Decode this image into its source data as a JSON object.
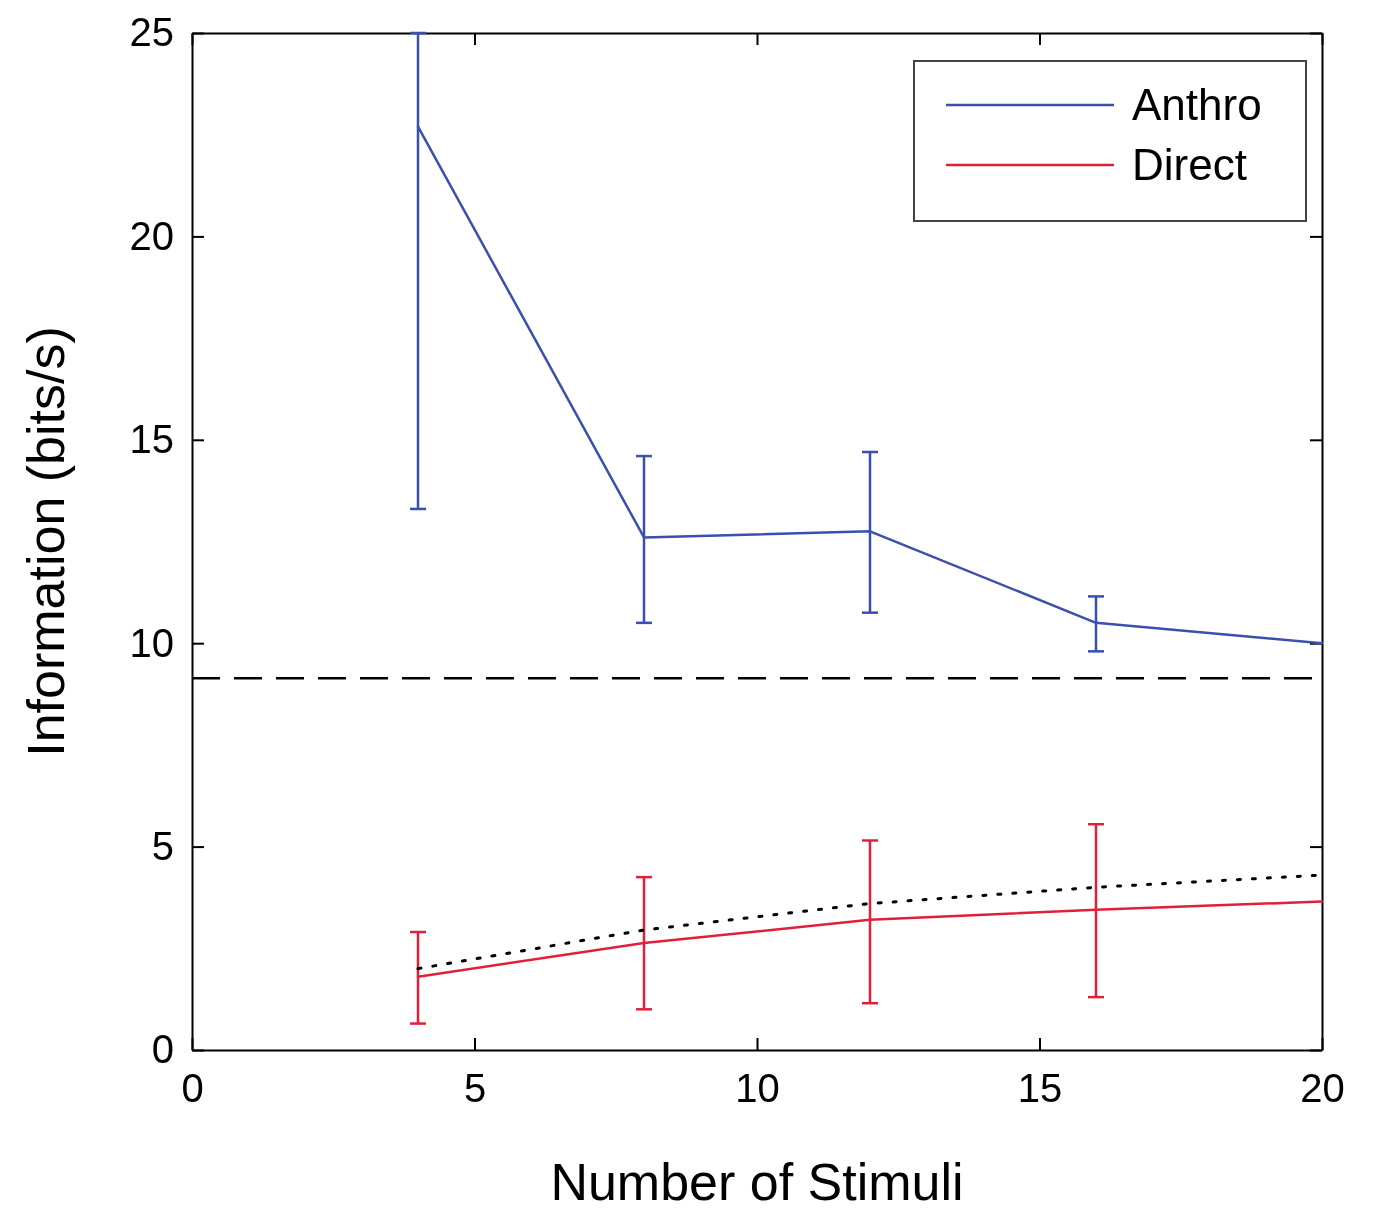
{
  "chart_data": {
    "type": "line",
    "xlabel": "Number of Stimuli",
    "ylabel": "Information (bits/s)",
    "x": [
      4,
      8,
      12,
      16,
      20
    ],
    "series": [
      {
        "name": "Anthro",
        "color": "#3a4fb0",
        "values": [
          22.7,
          12.6,
          12.75,
          10.5,
          10.0
        ],
        "errors": [
          [
            13.3,
            25
          ],
          [
            10.5,
            14.6
          ],
          [
            10.75,
            14.7
          ],
          [
            9.8,
            11.15
          ],
          null
        ]
      },
      {
        "name": "Direct",
        "color": "#e0203a",
        "values": [
          1.8,
          2.63,
          3.2,
          3.45,
          3.65
        ],
        "errors": [
          [
            0.65,
            2.9
          ],
          [
            1.0,
            4.25
          ],
          [
            1.15,
            5.15
          ],
          [
            1.3,
            5.55
          ],
          null
        ]
      },
      {
        "color": "#000000",
        "line_style": "dotted",
        "values": [
          2.0,
          2.95,
          3.6,
          4.0,
          4.3
        ]
      }
    ],
    "xlim": [
      0,
      20
    ],
    "xticks": [
      0,
      5,
      10,
      15,
      20
    ],
    "ylim": [
      0,
      25
    ],
    "yticks": [
      0,
      5,
      10,
      15,
      20,
      25
    ],
    "ref_lines": [
      {
        "axis": "y",
        "value": 9.14,
        "color": "#000000",
        "line_style": "dashed"
      }
    ],
    "legend": "top right",
    "marker": "none",
    "line_style": "solid",
    "grid": false
  }
}
